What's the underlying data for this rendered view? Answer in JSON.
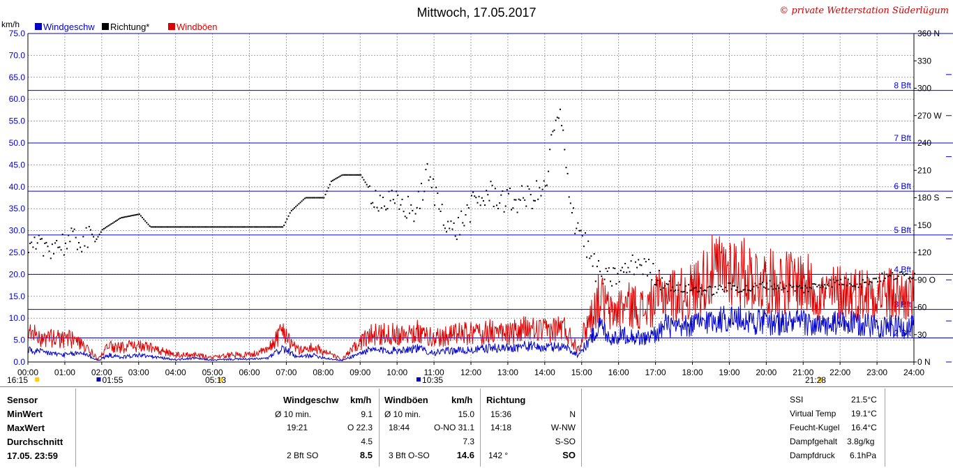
{
  "header": {
    "title": "Mittwoch, 17.05.2017",
    "copyright": "© private Wetterstation Süderlügum"
  },
  "legend": [
    {
      "label": "Windgeschw",
      "color": "#0000cc"
    },
    {
      "label": "Richtung*",
      "color": "#000000"
    },
    {
      "label": "Windböen",
      "color": "#dd0000"
    }
  ],
  "chart_data": {
    "type": "line",
    "title": "Mittwoch, 17.05.2017",
    "ylabel": "km/h",
    "ylim": [
      0,
      75
    ],
    "y_ticks": [
      "0.0",
      "5.0",
      "10.0",
      "15.0",
      "20.0",
      "25.0",
      "30.0",
      "35.0",
      "40.0",
      "45.0",
      "50.0",
      "55.0",
      "60.0",
      "65.0",
      "70.0",
      "75.0"
    ],
    "y2_ticks": [
      {
        "v": 0,
        "t": "0 N"
      },
      {
        "v": 30,
        "t": "30"
      },
      {
        "v": 60,
        "t": "60"
      },
      {
        "v": 90,
        "t": "90 O"
      },
      {
        "v": 120,
        "t": "120"
      },
      {
        "v": 150,
        "t": "150"
      },
      {
        "v": 180,
        "t": "180 S"
      },
      {
        "v": 210,
        "t": "210"
      },
      {
        "v": 240,
        "t": "240"
      },
      {
        "v": 270,
        "t": "270 W"
      },
      {
        "v": 300,
        "t": "300"
      },
      {
        "v": 330,
        "t": "330"
      },
      {
        "v": 360,
        "t": "360 N"
      }
    ],
    "y2lim": [
      0,
      360
    ],
    "x_ticks": [
      "00:00",
      "01:00",
      "02:00",
      "03:00",
      "04:00",
      "05:00",
      "06:00",
      "07:00",
      "08:00",
      "09:00",
      "10:00",
      "11:00",
      "12:00",
      "13:00",
      "14:00",
      "15:00",
      "16:00",
      "17:00",
      "18:00",
      "19:00",
      "20:00",
      "21:00",
      "22:00",
      "23:00",
      "24:00"
    ],
    "xlim_hours": [
      0,
      24
    ],
    "beaufort_lines": [
      {
        "label": "2 Bft",
        "kmh": 5.5
      },
      {
        "label": "3 Bft",
        "kmh": 12
      },
      {
        "label": "4 Bft",
        "kmh": 20
      },
      {
        "label": "5 Bft",
        "kmh": 29
      },
      {
        "label": "6 Bft",
        "kmh": 39
      },
      {
        "label": "7 Bft",
        "kmh": 50
      },
      {
        "label": "8 Bft",
        "kmh": 62
      },
      {
        "label": "",
        "kmh": 75
      }
    ],
    "series": [
      {
        "name": "Windgeschw",
        "color": "#0000cc",
        "x_hours": [
          0,
          0.5,
          1,
          1.5,
          1.9,
          2.2,
          2.5,
          3,
          3.5,
          4,
          4.5,
          5,
          5.5,
          6,
          6.5,
          6.9,
          7.3,
          7.7,
          8.1,
          8.5,
          9.2,
          9.5,
          10,
          10.5,
          11,
          11.5,
          12,
          12.5,
          13,
          13.5,
          14,
          14.5,
          14.9,
          15.2,
          15.5,
          15.8,
          16.1,
          16.4,
          16.7,
          17,
          17.3,
          17.6,
          18,
          18.5,
          19,
          19.5,
          20,
          20.5,
          21,
          21.5,
          22,
          22.5,
          23,
          23.5,
          24
        ],
        "values": [
          2.5,
          2,
          1.5,
          2,
          0.3,
          1.5,
          1,
          1.5,
          1,
          0.5,
          0.8,
          0.4,
          0.6,
          0.6,
          0.8,
          3,
          1,
          1.5,
          0.8,
          0.3,
          2.5,
          2.5,
          2.5,
          3,
          2,
          2.5,
          2.5,
          3,
          3,
          3.5,
          3,
          3.5,
          1.5,
          4.5,
          8,
          5,
          6,
          5.5,
          5,
          6,
          8,
          7,
          8,
          9,
          9.5,
          9,
          8.5,
          8.5,
          8.5,
          7.5,
          8.5,
          8,
          8,
          7.5,
          7.5
        ]
      },
      {
        "name": "Windböen",
        "color": "#dd0000",
        "x_hours": [
          0,
          0.5,
          1,
          1.5,
          1.9,
          2.2,
          2.5,
          3,
          3.5,
          4,
          4.5,
          5,
          5.5,
          6,
          6.5,
          6.9,
          7.3,
          7.7,
          8.1,
          8.5,
          9.2,
          9.5,
          10,
          10.5,
          11,
          11.5,
          12,
          12.5,
          13,
          13.5,
          14,
          14.5,
          14.9,
          15.2,
          15.5,
          15.8,
          16.1,
          16.4,
          16.7,
          17,
          17.3,
          17.6,
          18,
          18.5,
          19,
          19.5,
          20,
          20.5,
          21,
          21.5,
          22,
          22.5,
          23,
          23.5,
          24
        ],
        "values": [
          6,
          5,
          5,
          4,
          0.5,
          3.5,
          3,
          3.5,
          2.5,
          1.5,
          1.5,
          1,
          1.5,
          1.5,
          2.5,
          7,
          2.5,
          3,
          2,
          0.5,
          5.5,
          6,
          6,
          6.5,
          5,
          6,
          6,
          6.5,
          6,
          7,
          6.5,
          7.5,
          3,
          9,
          14,
          10,
          12,
          12,
          11,
          13,
          15,
          14,
          15,
          19,
          20,
          18.5,
          17,
          17,
          17,
          14,
          15,
          14.5,
          15,
          14,
          14
        ]
      },
      {
        "name": "Richtung*",
        "color": "#000000",
        "axis": "y2",
        "x_hours": [
          0,
          0.5,
          1,
          1.5,
          1.8,
          2,
          2.5,
          3,
          3.3,
          4,
          5,
          6,
          6.9,
          7.1,
          7.5,
          8,
          8.2,
          8.5,
          9,
          9.3,
          9.6,
          10,
          10.5,
          10.8,
          11,
          11.5,
          12,
          12.5,
          13,
          13.5,
          14,
          14.2,
          14.4,
          14.6,
          14.8,
          15,
          15.3,
          15.6,
          16,
          16.5,
          17,
          17.5,
          18,
          18.5,
          19,
          19.5,
          20,
          20.5,
          21,
          21.5,
          22,
          22.5,
          23,
          23.5,
          24
        ],
        "values": [
          120,
          128,
          130,
          135,
          132,
          145,
          158,
          162,
          148,
          148,
          148,
          148,
          148,
          165,
          180,
          180,
          198,
          205,
          205,
          185,
          175,
          173,
          165,
          205,
          185,
          140,
          170,
          185,
          175,
          180,
          188,
          250,
          270,
          200,
          155,
          140,
          105,
          90,
          95,
          110,
          95,
          80,
          80,
          78,
          82,
          80,
          85,
          82,
          80,
          85,
          88,
          86,
          92,
          94,
          96
        ]
      }
    ]
  },
  "markers": [
    {
      "time": "16:15"
    },
    {
      "time": "01:55"
    },
    {
      "time": "05:13"
    },
    {
      "time": "10:35"
    },
    {
      "time": "21:28"
    }
  ],
  "table": {
    "sensor": {
      "header": "Sensor",
      "rows": [
        "MinWert",
        "MaxWert",
        "Durchschnitt",
        "17.05. 23:59"
      ]
    },
    "windgeschw": {
      "header": "Windgeschw",
      "unit": "km/h",
      "min_label": "Ø 10 min.",
      "min_value": "9.1",
      "max_time": "19:21",
      "max_value": "O 22.3",
      "avg": "4.5",
      "cur_label": "2 Bft SO",
      "cur_value": "8.5"
    },
    "windboeen": {
      "header": "Windböen",
      "unit": "km/h",
      "min_label": "Ø 10 min.",
      "min_value": "15.0",
      "max_time": "18:44",
      "max_value": "O-NO 31.1",
      "avg": "7.3",
      "cur_label": "3 Bft O-SO",
      "cur_value": "14.6"
    },
    "richtung": {
      "header": "Richtung",
      "min_time": "15:36",
      "min_value": "N",
      "max_time": "14:18",
      "max_value": "W-NW",
      "avg": "S-SO",
      "cur_label": "142 °",
      "cur_value": "SO"
    },
    "extra": [
      {
        "label": "SSI",
        "value": "21.5°C"
      },
      {
        "label": "Virtual Temp",
        "value": "19.1°C"
      },
      {
        "label": "Feucht-Kugel",
        "value": "16.4°C"
      },
      {
        "label": "Dampfgehalt",
        "value": "3.8g/kg"
      },
      {
        "label": "Dampfdruck",
        "value": "6.1hPa"
      }
    ]
  }
}
